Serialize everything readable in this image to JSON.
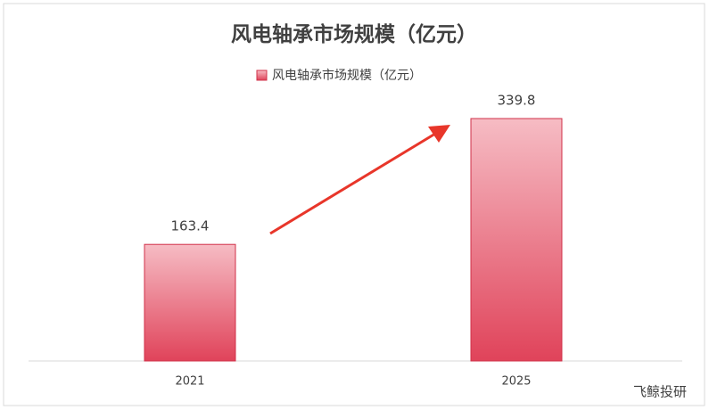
{
  "chart_data": {
    "type": "bar",
    "title": "风电轴承市场规模（亿元）",
    "series": [
      {
        "name": "风电轴承市场规模（亿元）",
        "color": "#e04a5e",
        "values": [
          163.4,
          339.8
        ]
      }
    ],
    "categories": [
      "2021",
      "2025"
    ]
  },
  "watermark": "飞鲸投研"
}
